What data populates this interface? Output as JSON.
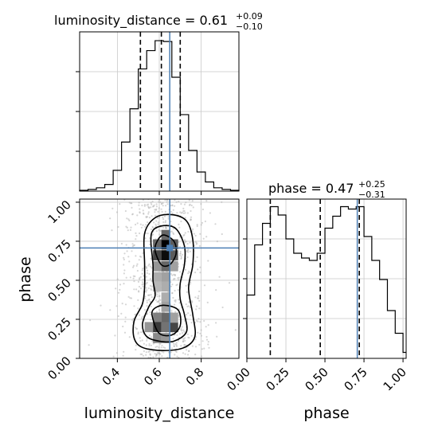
{
  "chart_data": {
    "type": "corner",
    "parameters": [
      "luminosity_distance",
      "phase"
    ],
    "truth": {
      "luminosity_distance": 0.65,
      "phase": 0.707
    },
    "colors": {
      "truth": "#4c7fb4",
      "hist": "#000000",
      "quantile": "#000000",
      "grid": "#c8c8c8",
      "scatter": "#b4b4b4"
    },
    "grid": true,
    "panels": {
      "luminosity_distance": {
        "title": {
          "base": "luminosity_distance = 0.61",
          "sup": "+0.09",
          "sub": "−0.10"
        },
        "xlim": [
          0.22,
          0.98
        ],
        "quantiles": [
          0.51,
          0.61,
          0.7
        ],
        "hist": {
          "edges": [
            0.22,
            0.26,
            0.3,
            0.34,
            0.38,
            0.42,
            0.46,
            0.5,
            0.54,
            0.58,
            0.62,
            0.66,
            0.7,
            0.74,
            0.78,
            0.82,
            0.86,
            0.9,
            0.94,
            0.98
          ],
          "counts": [
            1,
            2,
            4,
            8,
            25,
            59,
            99,
            147,
            169,
            181,
            180,
            137,
            92,
            49,
            23,
            11,
            4,
            2,
            1
          ]
        },
        "ymax": 182
      },
      "phase": {
        "title": {
          "base": "phase = 0.47",
          "sup": "+0.25",
          "sub": "−0.31"
        },
        "xlim": [
          0.0,
          1.02
        ],
        "xticks": [
          "0.00",
          "0.25",
          "0.50",
          "0.75",
          "1.00"
        ],
        "quantiles": [
          0.15,
          0.47,
          0.72
        ],
        "hist": {
          "edges": [
            0.0,
            0.05,
            0.1,
            0.15,
            0.2,
            0.25,
            0.3,
            0.35,
            0.4,
            0.45,
            0.5,
            0.55,
            0.6,
            0.65,
            0.7,
            0.75,
            0.8,
            0.85,
            0.9,
            0.95,
            1.0,
            1.02
          ],
          "counts": [
            53,
            95,
            113,
            127,
            120,
            100,
            88,
            84,
            82,
            88,
            109,
            119,
            127,
            125,
            127,
            102,
            82,
            66,
            40,
            21,
            5
          ]
        },
        "ymax": 128
      },
      "joint": {
        "xlim": [
          0.22,
          0.98
        ],
        "ylim": [
          0.0,
          1.02
        ],
        "xticks": [
          "0.4",
          "0.6",
          "0.8"
        ],
        "yticks": [
          "0.00",
          "0.25",
          "0.50",
          "0.75",
          "1.00"
        ],
        "xlabel": "luminosity_distance",
        "ylabel": "phase",
        "contours": [
          [
            [
              0.58,
              0.69
            ],
            [
              0.61,
              0.6
            ],
            [
              0.65,
              0.6
            ],
            [
              0.68,
              0.67
            ],
            [
              0.67,
              0.75
            ],
            [
              0.62,
              0.79
            ],
            [
              0.59,
              0.75
            ]
          ],
          [
            [
              0.57,
              0.25
            ],
            [
              0.6,
              0.16
            ],
            [
              0.66,
              0.15
            ],
            [
              0.7,
              0.21
            ],
            [
              0.69,
              0.31
            ],
            [
              0.62,
              0.34
            ],
            [
              0.57,
              0.31
            ]
          ],
          [
            [
              0.56,
              0.75
            ],
            [
              0.57,
              0.6
            ],
            [
              0.57,
              0.5
            ],
            [
              0.58,
              0.4
            ],
            [
              0.55,
              0.33
            ],
            [
              0.52,
              0.22
            ],
            [
              0.54,
              0.14
            ],
            [
              0.6,
              0.11
            ],
            [
              0.67,
              0.11
            ],
            [
              0.73,
              0.17
            ],
            [
              0.72,
              0.28
            ],
            [
              0.7,
              0.38
            ],
            [
              0.7,
              0.48
            ],
            [
              0.72,
              0.6
            ],
            [
              0.72,
              0.72
            ],
            [
              0.68,
              0.83
            ],
            [
              0.62,
              0.85
            ],
            [
              0.57,
              0.82
            ]
          ],
          [
            [
              0.53,
              0.8
            ],
            [
              0.53,
              0.6
            ],
            [
              0.53,
              0.46
            ],
            [
              0.52,
              0.35
            ],
            [
              0.48,
              0.24
            ],
            [
              0.48,
              0.13
            ],
            [
              0.52,
              0.07
            ],
            [
              0.62,
              0.05
            ],
            [
              0.72,
              0.07
            ],
            [
              0.77,
              0.14
            ],
            [
              0.76,
              0.28
            ],
            [
              0.74,
              0.45
            ],
            [
              0.76,
              0.6
            ],
            [
              0.76,
              0.76
            ],
            [
              0.73,
              0.88
            ],
            [
              0.66,
              0.92
            ],
            [
              0.58,
              0.9
            ]
          ]
        ],
        "density_cells": [
          {
            "x": 0.63,
            "y": 0.73,
            "v": 1.0
          },
          {
            "x": 0.63,
            "y": 0.66,
            "v": 0.95
          },
          {
            "x": 0.59,
            "y": 0.66,
            "v": 0.7
          },
          {
            "x": 0.67,
            "y": 0.66,
            "v": 0.6
          },
          {
            "x": 0.59,
            "y": 0.73,
            "v": 0.55
          },
          {
            "x": 0.67,
            "y": 0.73,
            "v": 0.6
          },
          {
            "x": 0.63,
            "y": 0.79,
            "v": 0.55
          },
          {
            "x": 0.63,
            "y": 0.59,
            "v": 0.55
          },
          {
            "x": 0.59,
            "y": 0.59,
            "v": 0.35
          },
          {
            "x": 0.67,
            "y": 0.59,
            "v": 0.3
          },
          {
            "x": 0.63,
            "y": 0.52,
            "v": 0.3
          },
          {
            "x": 0.59,
            "y": 0.52,
            "v": 0.25
          },
          {
            "x": 0.63,
            "y": 0.46,
            "v": 0.25
          },
          {
            "x": 0.59,
            "y": 0.46,
            "v": 0.2
          },
          {
            "x": 0.63,
            "y": 0.39,
            "v": 0.25
          },
          {
            "x": 0.63,
            "y": 0.33,
            "v": 0.3
          },
          {
            "x": 0.63,
            "y": 0.26,
            "v": 0.55
          },
          {
            "x": 0.59,
            "y": 0.26,
            "v": 0.45
          },
          {
            "x": 0.59,
            "y": 0.2,
            "v": 0.75
          },
          {
            "x": 0.63,
            "y": 0.2,
            "v": 0.5
          },
          {
            "x": 0.67,
            "y": 0.2,
            "v": 0.7
          },
          {
            "x": 0.55,
            "y": 0.2,
            "v": 0.35
          },
          {
            "x": 0.59,
            "y": 0.13,
            "v": 0.4
          },
          {
            "x": 0.63,
            "y": 0.13,
            "v": 0.35
          },
          {
            "x": 0.67,
            "y": 0.26,
            "v": 0.3
          }
        ]
      }
    }
  }
}
